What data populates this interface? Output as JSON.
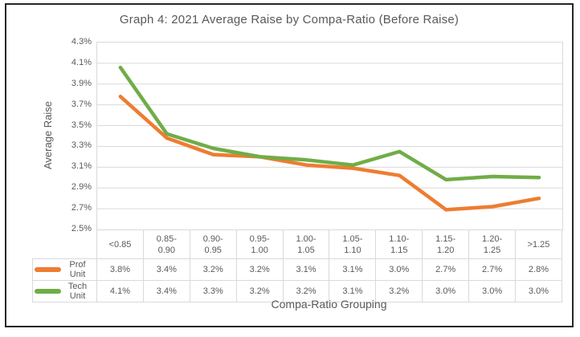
{
  "window": {
    "background": "#ffffff",
    "frame_border_color": "#262626"
  },
  "colors": {
    "text": "#595959",
    "gridline": "#D9D9D9",
    "table_border": "#D9D9D9",
    "prof_unit": "#ED7D31",
    "tech_unit": "#70AD47"
  },
  "chart_data": {
    "type": "line",
    "title": "Graph 4: 2021 Average Raise by Compa-Ratio (Before Raise)",
    "xlabel": "Compa-Ratio Grouping",
    "ylabel": "Average Raise",
    "categories": [
      "<0.85",
      "0.85-0.90",
      "0.90-0.95",
      "0.95-1.00",
      "1.00-1.05",
      "1.05-1.10",
      "1.10-1.15",
      "1.15-1.20",
      "1.20-1.25",
      ">1.25"
    ],
    "category_display": [
      "<0.85",
      "0.85-\n0.90",
      "0.90-\n0.95",
      "0.95-\n1.00",
      "1.00-\n1.05",
      "1.05-\n1.10",
      "1.10-\n1.15",
      "1.15-\n1.20",
      "1.20-\n1.25",
      ">1.25"
    ],
    "series": [
      {
        "name": "Prof Unit",
        "color": "#ED7D31",
        "values": [
          3.8,
          3.4,
          3.2,
          3.2,
          3.1,
          3.1,
          3.0,
          2.7,
          2.7,
          2.8
        ],
        "labels": [
          "3.8%",
          "3.4%",
          "3.2%",
          "3.2%",
          "3.1%",
          "3.1%",
          "3.0%",
          "2.7%",
          "2.7%",
          "2.8%"
        ],
        "plot_values": [
          3.78,
          3.38,
          3.22,
          3.2,
          3.12,
          3.09,
          3.02,
          2.69,
          2.72,
          2.8
        ]
      },
      {
        "name": "Tech Unit",
        "color": "#70AD47",
        "values": [
          4.1,
          3.4,
          3.3,
          3.2,
          3.2,
          3.1,
          3.2,
          3.0,
          3.0,
          3.0
        ],
        "labels": [
          "4.1%",
          "3.4%",
          "3.3%",
          "3.2%",
          "3.2%",
          "3.1%",
          "3.2%",
          "3.0%",
          "3.0%",
          "3.0%"
        ],
        "plot_values": [
          4.06,
          3.42,
          3.28,
          3.2,
          3.17,
          3.12,
          3.25,
          2.98,
          3.01,
          3.0
        ]
      }
    ],
    "y_axis": {
      "min": 2.5,
      "max": 4.3,
      "step": 0.2,
      "tick_labels": [
        "4.3%",
        "4.1%",
        "3.9%",
        "3.7%",
        "3.5%",
        "3.3%",
        "3.1%",
        "2.9%",
        "2.7%",
        "2.5%"
      ]
    },
    "ylim": [
      2.5,
      4.3
    ],
    "grid": "horizontal",
    "legend_position": "data-table-left",
    "data_table_shown": true
  }
}
